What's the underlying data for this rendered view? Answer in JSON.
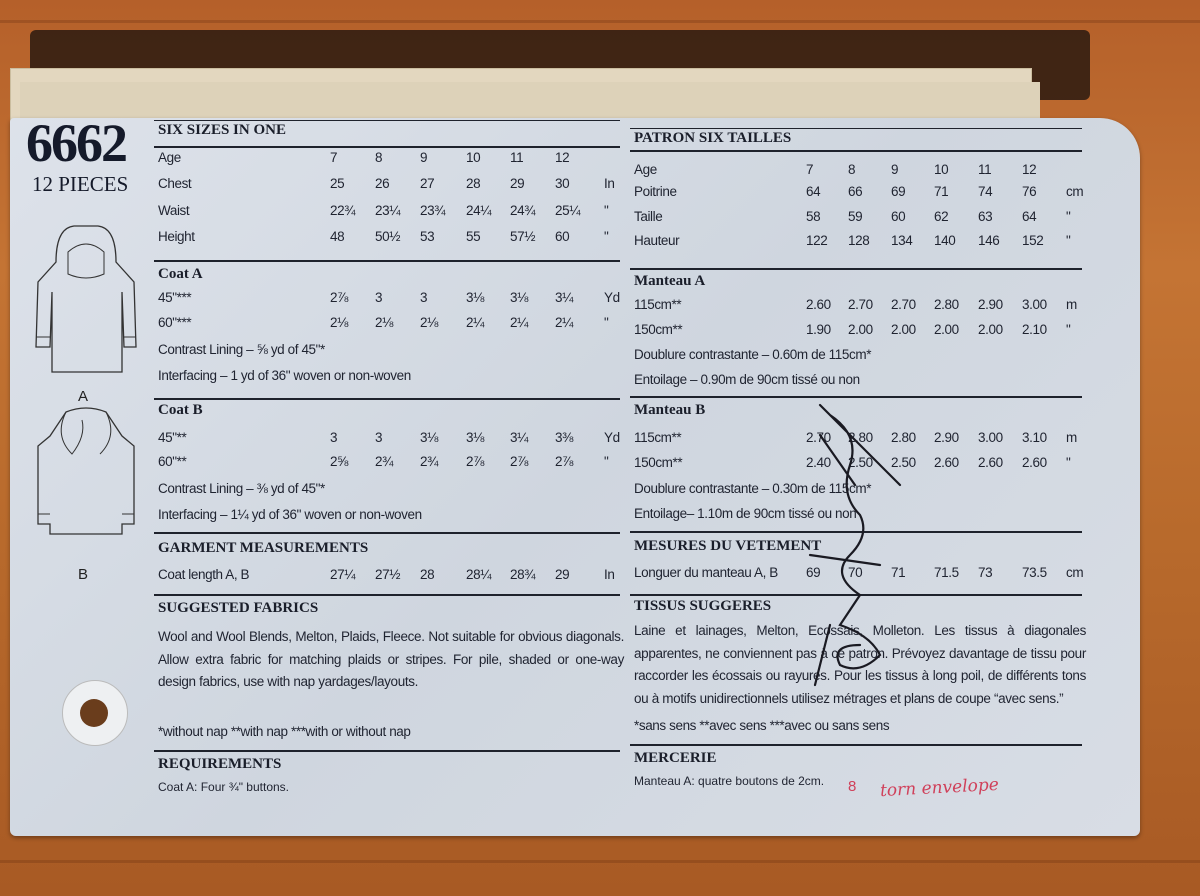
{
  "pattern": {
    "number": "6662",
    "pieces": "12 PIECES",
    "views": [
      "A",
      "B"
    ]
  },
  "left": {
    "sizes": {
      "title": "SIX SIZES IN ONE",
      "rows": [
        {
          "label": "Age",
          "values": [
            "7",
            "8",
            "9",
            "10",
            "11",
            "12"
          ],
          "unit": ""
        },
        {
          "label": "Chest",
          "values": [
            "25",
            "26",
            "27",
            "28",
            "29",
            "30"
          ],
          "unit": "In"
        },
        {
          "label": "Waist",
          "values": [
            "22¾",
            "23¼",
            "23¾",
            "24¼",
            "24¾",
            "25¼"
          ],
          "unit": "\""
        },
        {
          "label": "Height",
          "values": [
            "48",
            "50½",
            "53",
            "55",
            "57½",
            "60"
          ],
          "unit": "\""
        }
      ]
    },
    "coat_a": {
      "title": "Coat A",
      "rows": [
        {
          "label": "45\"***",
          "values": [
            "2⅞",
            "3",
            "3",
            "3⅛",
            "3⅛",
            "3¼"
          ],
          "unit": "Yd"
        },
        {
          "label": "60\"***",
          "values": [
            "2⅛",
            "2⅛",
            "2⅛",
            "2¼",
            "2¼",
            "2¼"
          ],
          "unit": "\""
        }
      ],
      "notes": [
        "Contrast Lining – ⅝ yd of 45\"*",
        "Interfacing – 1 yd of 36\" woven or non-woven"
      ]
    },
    "coat_b": {
      "title": "Coat B",
      "rows": [
        {
          "label": "45\"**",
          "values": [
            "3",
            "3",
            "3⅛",
            "3⅛",
            "3¼",
            "3⅜"
          ],
          "unit": "Yd"
        },
        {
          "label": "60\"**",
          "values": [
            "2⅝",
            "2¾",
            "2¾",
            "2⅞",
            "2⅞",
            "2⅞"
          ],
          "unit": "\""
        }
      ],
      "notes": [
        "Contrast Lining – ⅜ yd of 45\"*",
        "Interfacing – 1¼ yd of 36\" woven or non-woven"
      ]
    },
    "garment": {
      "title": "GARMENT MEASUREMENTS",
      "rows": [
        {
          "label": "Coat length A, B",
          "values": [
            "27¼",
            "27½",
            "28",
            "28¼",
            "28¾",
            "29"
          ],
          "unit": "In"
        }
      ]
    },
    "fabrics": {
      "title": "SUGGESTED FABRICS",
      "text": "Wool and Wool Blends, Melton, Plaids, Fleece. Not suitable for obvious diagonals. Allow extra fabric for matching plaids or stripes. For pile, shaded or one-way design fabrics, use with nap yardages/layouts.",
      "footnote": "*without nap **with nap ***with or without nap"
    },
    "requirements": {
      "title": "REQUIREMENTS",
      "text": "Coat A: Four ¾\" buttons."
    }
  },
  "right": {
    "sizes": {
      "title": "PATRON SIX TAILLES",
      "rows": [
        {
          "label": "Age",
          "values": [
            "7",
            "8",
            "9",
            "10",
            "11",
            "12"
          ],
          "unit": ""
        },
        {
          "label": "Poitrine",
          "values": [
            "64",
            "66",
            "69",
            "71",
            "74",
            "76"
          ],
          "unit": "cm"
        },
        {
          "label": "Taille",
          "values": [
            "58",
            "59",
            "60",
            "62",
            "63",
            "64"
          ],
          "unit": "\""
        },
        {
          "label": "Hauteur",
          "values": [
            "122",
            "128",
            "134",
            "140",
            "146",
            "152"
          ],
          "unit": "\""
        }
      ]
    },
    "coat_a": {
      "title": "Manteau A",
      "rows": [
        {
          "label": "115cm**",
          "values": [
            "2.60",
            "2.70",
            "2.70",
            "2.80",
            "2.90",
            "3.00"
          ],
          "unit": "m"
        },
        {
          "label": "150cm**",
          "values": [
            "1.90",
            "2.00",
            "2.00",
            "2.00",
            "2.00",
            "2.10"
          ],
          "unit": "\""
        }
      ],
      "notes": [
        "Doublure contrastante – 0.60m de 115cm*",
        "Entoilage – 0.90m de 90cm tissé ou non"
      ]
    },
    "coat_b": {
      "title": "Manteau B",
      "rows": [
        {
          "label": "115cm**",
          "values": [
            "2.70",
            "2.80",
            "2.80",
            "2.90",
            "3.00",
            "3.10"
          ],
          "unit": "m"
        },
        {
          "label": "150cm**",
          "values": [
            "2.40",
            "2.50",
            "2.50",
            "2.60",
            "2.60",
            "2.60"
          ],
          "unit": "\""
        }
      ],
      "notes": [
        "Doublure contrastante – 0.30m de 115cm*",
        "Entoilage– 1.10m de 90cm tissé ou non"
      ]
    },
    "garment": {
      "title": "MESURES DU VETEMENT",
      "rows": [
        {
          "label": "Longuer du manteau A, B",
          "values": [
            "69",
            "70",
            "71",
            "71.5",
            "73",
            "73.5"
          ],
          "unit": "cm"
        }
      ]
    },
    "fabrics": {
      "title": "TISSUS SUGGERES",
      "text": "Laine et lainages, Melton, Ecossais, Molleton. Les tissus à diagonales apparentes, ne conviennent pas à ce patron. Prévoyez davantage de tissu pour raccorder les écossais ou rayures. Pour les tissus à long poil, de différents tons ou à motifs unidirectionnels utilisez métrages et plans de coupe “avec sens.”",
      "footnote": "*sans sens **avec sens ***avec ou sans sens"
    },
    "requirements": {
      "title": "MERCERIE",
      "text": "Manteau A: quatre boutons de 2cm."
    }
  },
  "handwritten": {
    "price_mark": "8",
    "note": "torn envelope",
    "ink_color": "#d0405a"
  },
  "colors": {
    "paper": "#d6dce4",
    "ink": "#1f2330",
    "wood": "#b86a2c"
  }
}
